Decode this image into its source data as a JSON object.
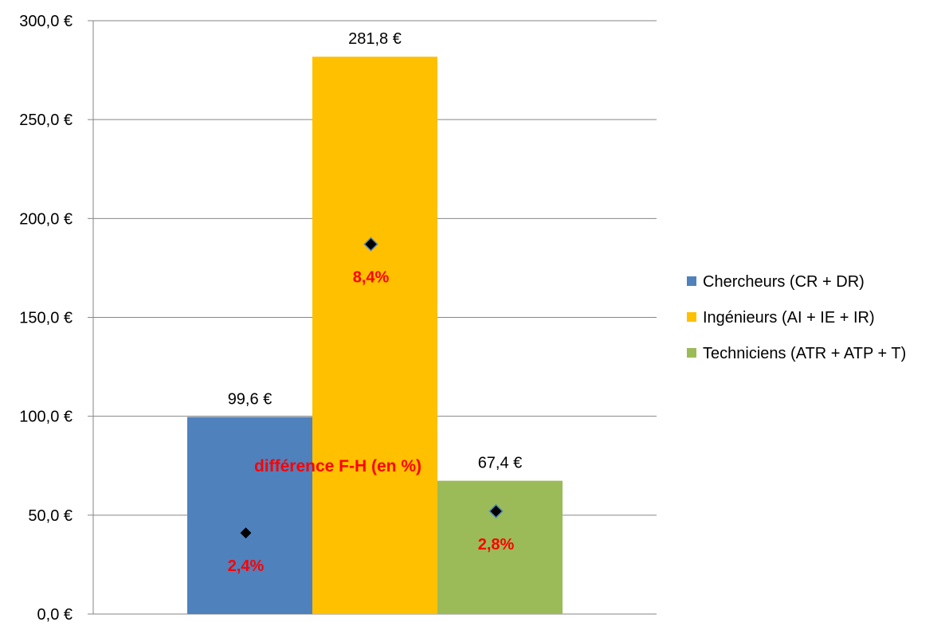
{
  "chart_data": {
    "type": "bar",
    "title": "",
    "xlabel": "",
    "ylabel": "",
    "ylim": [
      0,
      300
    ],
    "yticks": [
      {
        "value": 0,
        "label": "0,0 €"
      },
      {
        "value": 50,
        "label": "50,0 €"
      },
      {
        "value": 100,
        "label": "100,0 €"
      },
      {
        "value": 150,
        "label": "150,0 €"
      },
      {
        "value": 200,
        "label": "200,0 €"
      },
      {
        "value": 250,
        "label": "250,0 €"
      },
      {
        "value": 300,
        "label": "300,0 €"
      }
    ],
    "grid": true,
    "legend_position": "right",
    "series": [
      {
        "name": "Chercheurs (CR + DR)",
        "value": 99.6,
        "value_label": "99,6 €",
        "color": "#4f81bd",
        "pct_value": 41,
        "pct_label": "2,4%"
      },
      {
        "name": "Ingénieurs (AI + IE + IR)",
        "value": 281.8,
        "value_label": "281,8 €",
        "color": "#ffc000",
        "pct_value": 187,
        "pct_label": "8,4%"
      },
      {
        "name": "Techniciens (ATR + ATP + T)",
        "value": 67.4,
        "value_label": "67,4 €",
        "color": "#9bbb59",
        "pct_value": 52,
        "pct_label": "2,8%"
      }
    ],
    "annotation": "différence F-H (en %)",
    "marker_color": "#000000",
    "annotation_color": "#ff0000"
  }
}
